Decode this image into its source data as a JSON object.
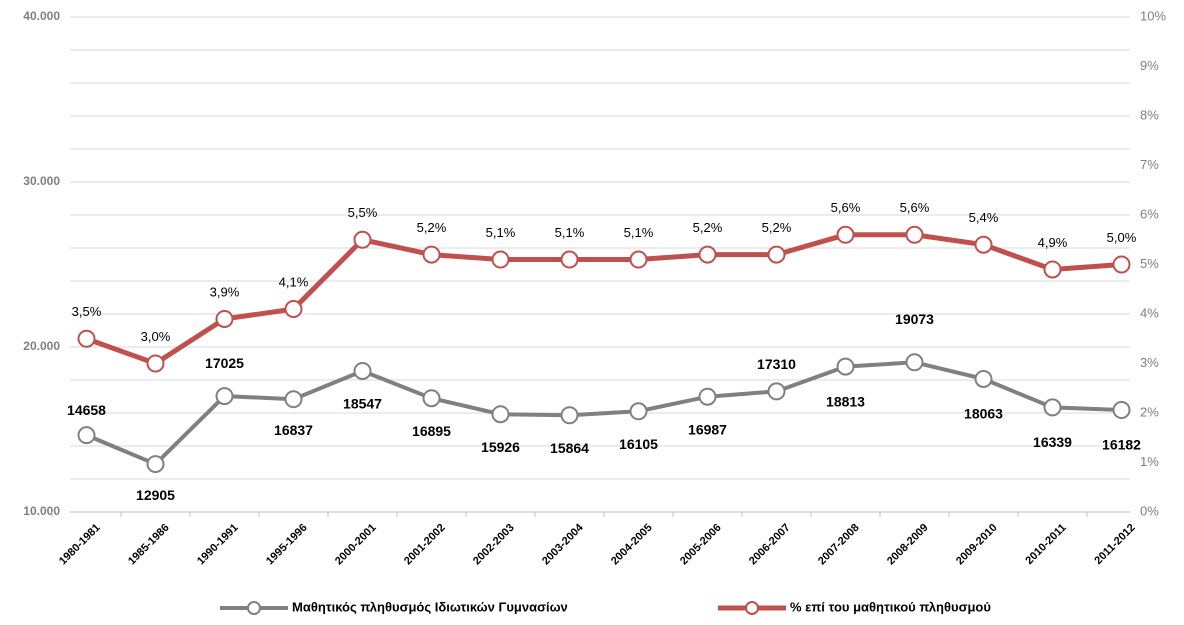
{
  "chart_data": {
    "type": "line",
    "categories": [
      "1980-1981",
      "1985-1986",
      "1990-1991",
      "1995-1996",
      "2000-2001",
      "2001-2002",
      "2002-2003",
      "2003-2004",
      "2004-2005",
      "2005-2006",
      "2006-2007",
      "2007-2008",
      "2008-2009",
      "2009-2010",
      "2010-2011",
      "2011-2012"
    ],
    "series": [
      {
        "name": "Μαθητικός πληθυσμός Ιδιωτικών Γυμνασίων",
        "color": "#808080",
        "values": [
          14658,
          12905,
          17025,
          16837,
          18547,
          16895,
          15926,
          15864,
          16105,
          16987,
          17310,
          18813,
          19073,
          18063,
          16339,
          16182
        ]
      },
      {
        "name": "% επί του μαθητικού πληθυσμού",
        "color": "#c0504d",
        "axis": "y2",
        "values": [
          3.5,
          3.0,
          3.9,
          4.1,
          5.5,
          5.2,
          5.1,
          5.1,
          5.1,
          5.2,
          5.2,
          5.6,
          5.6,
          5.4,
          4.9,
          5.0
        ],
        "value_labels": [
          "3,5%",
          "3,0%",
          "3,9%",
          "4,1%",
          "5,5%",
          "5,2%",
          "5,1%",
          "5,1%",
          "5,1%",
          "5,2%",
          "5,2%",
          "5,6%",
          "5,6%",
          "5,4%",
          "4,9%",
          "5,0%"
        ]
      }
    ],
    "ylim": [
      10000,
      40000
    ],
    "yticks": [
      {
        "value": 10000,
        "label": "10.000"
      },
      {
        "value": 20000,
        "label": "20.000"
      },
      {
        "value": 30000,
        "label": "30.000"
      },
      {
        "value": 40000,
        "label": "40.000"
      }
    ],
    "y2lim": [
      0,
      10
    ],
    "y2ticks": [
      {
        "value": 0,
        "label": "0%"
      },
      {
        "value": 1,
        "label": "1%"
      },
      {
        "value": 2,
        "label": "2%"
      },
      {
        "value": 3,
        "label": "3%"
      },
      {
        "value": 4,
        "label": "4%"
      },
      {
        "value": 5,
        "label": "5%"
      },
      {
        "value": 6,
        "label": "6%"
      },
      {
        "value": 7,
        "label": "7%"
      },
      {
        "value": 8,
        "label": "8%"
      },
      {
        "value": 9,
        "label": "9%"
      },
      {
        "value": 10,
        "label": "10%"
      }
    ],
    "grid_yticks": [
      12000,
      14000,
      16000,
      18000,
      20000,
      22000,
      24000,
      26000,
      28000,
      30000,
      32000,
      34000,
      36000,
      38000,
      40000
    ],
    "grid": true,
    "legend": "bottom"
  }
}
